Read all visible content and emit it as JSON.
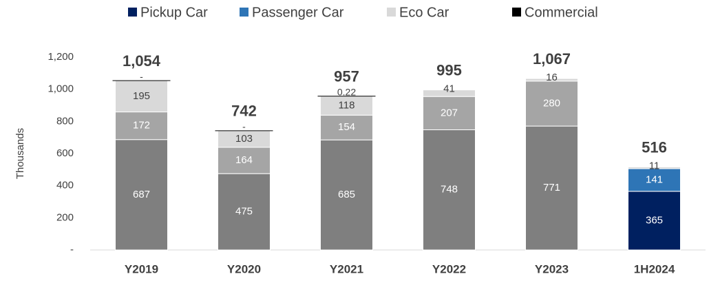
{
  "chart_data": {
    "type": "stacked_bar",
    "y_axis_label": "Thousands",
    "categories": [
      "Y2019",
      "Y2020",
      "Y2021",
      "Y2022",
      "Y2023",
      "1H2024"
    ],
    "series": [
      {
        "name": "Pickup Car",
        "color": "#002060",
        "colors": [
          "#7f7f7f",
          "#7f7f7f",
          "#7f7f7f",
          "#7f7f7f",
          "#7f7f7f",
          "#002060"
        ],
        "values": [
          687,
          475,
          685,
          748,
          771,
          365
        ]
      },
      {
        "name": "Passenger Car",
        "color": "#2e75b6",
        "colors": [
          "#a5a5a5",
          "#a5a5a5",
          "#a5a5a5",
          "#a5a5a5",
          "#a5a5a5",
          "#2e75b6"
        ],
        "values": [
          172,
          164,
          154,
          207,
          280,
          141
        ]
      },
      {
        "name": "Eco Car",
        "color": "#d9d9d9",
        "colors": [
          "#d9d9d9",
          "#d9d9d9",
          "#d9d9d9",
          "#d9d9d9",
          "#d9d9d9",
          "#d9d9d9"
        ],
        "values": [
          195,
          103,
          118,
          41,
          16,
          11
        ]
      },
      {
        "name": "Commercial",
        "color": "#000000",
        "colors": [
          "#000000",
          "#000000",
          "#000000",
          "#000000",
          "#000000",
          "#000000"
        ],
        "values": [
          0,
          0,
          0.22,
          null,
          null,
          null
        ],
        "value_labels": [
          "-",
          "-",
          "0.22",
          null,
          null,
          null
        ]
      }
    ],
    "totals": [
      1054,
      742,
      957,
      995,
      1067,
      516
    ],
    "total_labels": [
      "1,054",
      "742",
      "957",
      "995",
      "1,067",
      "516"
    ],
    "ylim": [
      0,
      1200
    ],
    "yticks": [
      {
        "value": 0,
        "label": "-"
      },
      200,
      400,
      600,
      800,
      {
        "value": 1000,
        "label": "1,000"
      },
      {
        "value": 1200,
        "label": "1,200"
      }
    ],
    "grid": false,
    "legend": "top"
  }
}
